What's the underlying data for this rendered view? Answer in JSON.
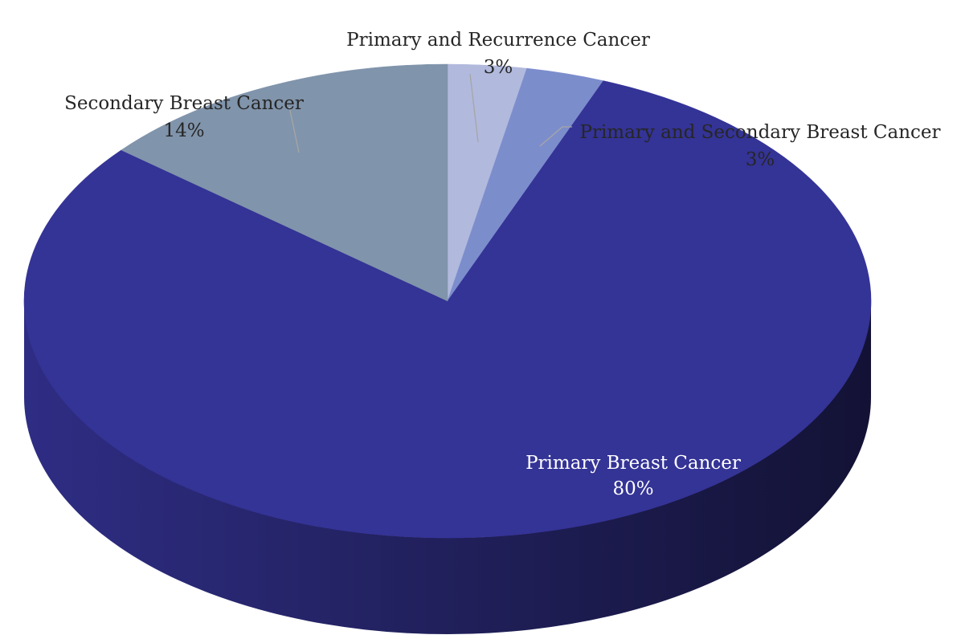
{
  "chart_data": {
    "type": "pie",
    "title": "",
    "legend": "none",
    "slices": [
      {
        "label": "Primary and Recurrence Cancer",
        "value": 3,
        "value_label": "3%",
        "color": "#b1b9dd"
      },
      {
        "label": "Primary and Secondary Breast Cancer",
        "value": 3,
        "value_label": "3%",
        "color": "#7c8dcc"
      },
      {
        "label": "Primary Breast Cancer",
        "value": 80,
        "value_label": "80%",
        "color": "#343396"
      },
      {
        "label": "Secondary Breast Cancer",
        "value": 14,
        "value_label": "14%",
        "color": "#8094ab"
      }
    ]
  }
}
